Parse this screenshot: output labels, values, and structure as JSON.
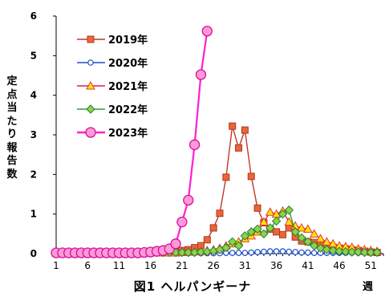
{
  "chart_data": {
    "type": "line",
    "title": "図1 ヘルパンギーナ",
    "xlabel": "週",
    "ylabel": "定点当たり報告数",
    "xlim": [
      1,
      53
    ],
    "ylim": [
      0,
      6
    ],
    "xticks": [
      1,
      6,
      11,
      16,
      21,
      26,
      31,
      36,
      41,
      46,
      51
    ],
    "yticks": [
      0,
      1,
      2,
      3,
      4,
      5,
      6
    ],
    "grid": false,
    "legend_position": "top-left",
    "series": [
      {
        "name": "2019年",
        "color": "#c0392b",
        "marker": "square",
        "x": [
          1,
          2,
          3,
          4,
          5,
          6,
          7,
          8,
          9,
          10,
          11,
          12,
          13,
          14,
          15,
          16,
          17,
          18,
          19,
          20,
          21,
          22,
          23,
          24,
          25,
          26,
          27,
          28,
          29,
          30,
          31,
          32,
          33,
          34,
          35,
          36,
          37,
          38,
          39,
          40,
          41,
          42,
          43,
          44,
          45,
          46,
          47,
          48,
          49,
          50,
          51,
          52
        ],
        "y": [
          0.02,
          0.02,
          0.02,
          0.02,
          0.02,
          0.02,
          0.02,
          0.02,
          0.02,
          0.02,
          0.02,
          0.02,
          0.02,
          0.02,
          0.02,
          0.02,
          0.03,
          0.04,
          0.05,
          0.06,
          0.08,
          0.1,
          0.15,
          0.2,
          0.35,
          0.65,
          1.02,
          1.93,
          3.22,
          2.67,
          3.12,
          1.95,
          1.15,
          0.78,
          0.62,
          0.55,
          0.48,
          0.65,
          0.42,
          0.32,
          0.3,
          0.28,
          0.22,
          0.18,
          0.16,
          0.14,
          0.12,
          0.1,
          0.08,
          0.06,
          0.04,
          0.03
        ]
      },
      {
        "name": "2020年",
        "color": "#1f4fd1",
        "marker": "circle-open",
        "x": [
          1,
          2,
          3,
          4,
          5,
          6,
          7,
          8,
          9,
          10,
          11,
          12,
          13,
          14,
          15,
          16,
          17,
          18,
          19,
          20,
          21,
          22,
          23,
          24,
          25,
          26,
          27,
          28,
          29,
          30,
          31,
          32,
          33,
          34,
          35,
          36,
          37,
          38,
          39,
          40,
          41,
          42,
          43,
          44,
          45,
          46,
          47,
          48,
          49,
          50,
          51,
          52
        ],
        "y": [
          0.02,
          0.02,
          0.02,
          0.02,
          0.02,
          0.02,
          0.02,
          0.02,
          0.02,
          0.02,
          0.02,
          0.02,
          0.01,
          0.01,
          0.01,
          0.01,
          0.01,
          0.01,
          0.01,
          0.01,
          0.01,
          0.01,
          0.01,
          0.01,
          0.01,
          0.01,
          0.01,
          0.02,
          0.02,
          0.02,
          0.02,
          0.03,
          0.04,
          0.05,
          0.06,
          0.06,
          0.06,
          0.05,
          0.04,
          0.03,
          0.03,
          0.02,
          0.02,
          0.02,
          0.02,
          0.02,
          0.02,
          0.02,
          0.02,
          0.02,
          0.02,
          0.02
        ]
      },
      {
        "name": "2021年",
        "color": "#d81b60",
        "marker": "triangle-yellow",
        "x": [
          1,
          2,
          3,
          4,
          5,
          6,
          7,
          8,
          9,
          10,
          11,
          12,
          13,
          14,
          15,
          16,
          17,
          18,
          19,
          20,
          21,
          22,
          23,
          24,
          25,
          26,
          27,
          28,
          29,
          30,
          31,
          32,
          33,
          34,
          35,
          36,
          37,
          38,
          39,
          40,
          41,
          42,
          43,
          44,
          45,
          46,
          47,
          48,
          49,
          50,
          51,
          52
        ],
        "y": [
          0.02,
          0.02,
          0.02,
          0.02,
          0.02,
          0.02,
          0.02,
          0.02,
          0.02,
          0.02,
          0.02,
          0.02,
          0.02,
          0.02,
          0.02,
          0.02,
          0.02,
          0.02,
          0.02,
          0.02,
          0.03,
          0.04,
          0.05,
          0.06,
          0.08,
          0.1,
          0.14,
          0.2,
          0.25,
          0.3,
          0.38,
          0.45,
          0.55,
          0.8,
          1.05,
          1.0,
          1.08,
          0.8,
          0.7,
          0.65,
          0.62,
          0.5,
          0.38,
          0.3,
          0.25,
          0.2,
          0.18,
          0.16,
          0.12,
          0.1,
          0.08,
          0.06
        ]
      },
      {
        "name": "2022年",
        "color": "#2e9e3a",
        "marker": "diamond",
        "x": [
          1,
          2,
          3,
          4,
          5,
          6,
          7,
          8,
          9,
          10,
          11,
          12,
          13,
          14,
          15,
          16,
          17,
          18,
          19,
          20,
          21,
          22,
          23,
          24,
          25,
          26,
          27,
          28,
          29,
          30,
          31,
          32,
          33,
          34,
          35,
          36,
          37,
          38,
          39,
          40,
          41,
          42,
          43,
          44,
          45,
          46,
          47,
          48,
          49,
          50,
          51,
          52
        ],
        "y": [
          0.02,
          0.03,
          0.03,
          0.03,
          0.03,
          0.03,
          0.03,
          0.03,
          0.03,
          0.03,
          0.03,
          0.03,
          0.03,
          0.03,
          0.03,
          0.03,
          0.03,
          0.03,
          0.03,
          0.03,
          0.03,
          0.03,
          0.03,
          0.04,
          0.05,
          0.07,
          0.1,
          0.15,
          0.3,
          0.2,
          0.45,
          0.55,
          0.62,
          0.5,
          0.65,
          0.82,
          1.0,
          1.1,
          0.55,
          0.4,
          0.3,
          0.2,
          0.14,
          0.1,
          0.08,
          0.06,
          0.05,
          0.04,
          0.04,
          0.03,
          0.03,
          0.03
        ]
      },
      {
        "name": "2023年",
        "color": "#ff1fd0",
        "marker": "circle-pink",
        "x": [
          1,
          2,
          3,
          4,
          5,
          6,
          7,
          8,
          9,
          10,
          11,
          12,
          13,
          14,
          15,
          16,
          17,
          18,
          19,
          20,
          21,
          22,
          23,
          24,
          25
        ],
        "y": [
          0.02,
          0.02,
          0.02,
          0.02,
          0.02,
          0.02,
          0.02,
          0.02,
          0.02,
          0.02,
          0.02,
          0.02,
          0.02,
          0.02,
          0.03,
          0.04,
          0.06,
          0.08,
          0.12,
          0.25,
          0.8,
          1.35,
          2.75,
          4.52,
          5.62
        ]
      }
    ]
  }
}
